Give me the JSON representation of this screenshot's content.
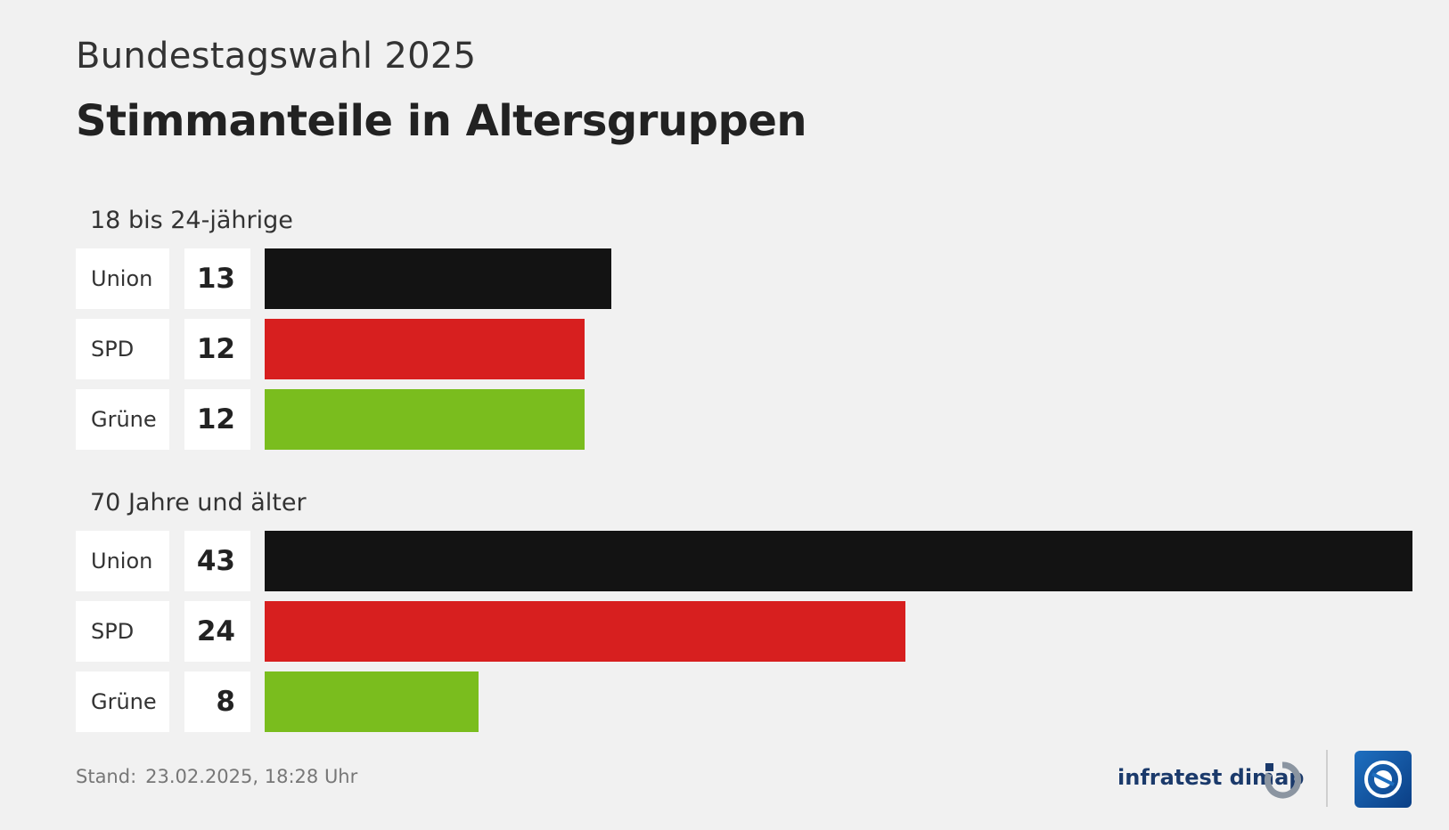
{
  "header": {
    "supertitle": "Bundestagswahl 2025",
    "title": "Stimmanteile in Altersgruppen"
  },
  "chart_data": {
    "type": "bar",
    "orientation": "horizontal",
    "x_max": 43,
    "groups": [
      {
        "label": "18 bis 24-jährige",
        "items": [
          {
            "party": "Union",
            "value": 13,
            "color": "#131313"
          },
          {
            "party": "SPD",
            "value": 12,
            "color": "#d71f1f"
          },
          {
            "party": "Grüne",
            "value": 12,
            "color": "#7abd1e"
          }
        ]
      },
      {
        "label": "70 Jahre und älter",
        "items": [
          {
            "party": "Union",
            "value": 43,
            "color": "#131313"
          },
          {
            "party": "SPD",
            "value": 24,
            "color": "#d71f1f"
          },
          {
            "party": "Grüne",
            "value": 8,
            "color": "#7abd1e"
          }
        ]
      }
    ]
  },
  "footer": {
    "stand_label": "Stand:",
    "stand_date": "23.02.2025, 18:28 Uhr",
    "source": "infratest dimap",
    "source_icon": "infratest-dimap-logo-icon",
    "broadcaster_icon": "tagesschau-logo-icon"
  }
}
